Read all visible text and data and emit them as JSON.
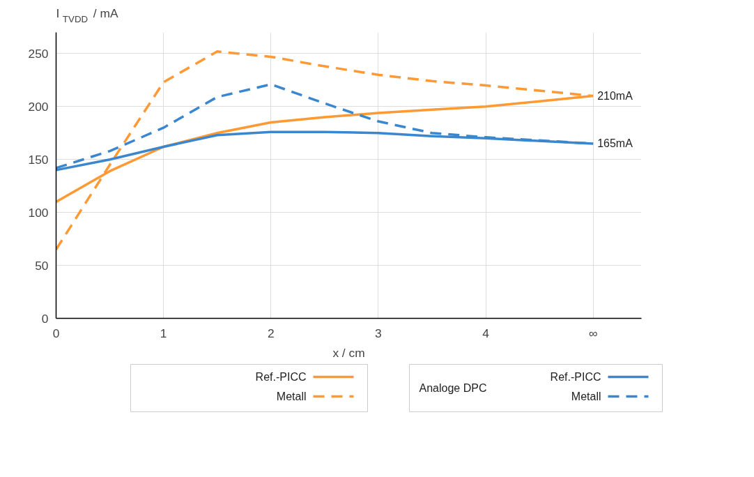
{
  "chart_data": {
    "type": "line",
    "xlabel": "x / cm",
    "ylabel": "I$_{TVDD}$ / mA",
    "x": [
      0,
      0.5,
      1,
      1.5,
      2,
      2.5,
      3,
      3.5,
      4,
      5
    ],
    "series": [
      {
        "name": "Ref.-PICC",
        "color": "#ff9933",
        "line_style": "solid",
        "values": [
          110,
          139,
          162,
          175,
          185,
          190,
          194,
          197,
          200,
          210
        ]
      },
      {
        "name": "Metall",
        "color": "#ff9933",
        "line_style": "dashed",
        "values": [
          65,
          145,
          223,
          252,
          247,
          238,
          230,
          224,
          220,
          210
        ]
      },
      {
        "name": "Ref.-PICC",
        "color": "#3a87cf",
        "line_style": "solid",
        "values": [
          140,
          150,
          162,
          173,
          176,
          176,
          175,
          172,
          170,
          165
        ]
      },
      {
        "name": "Metall",
        "color": "#3a87cf",
        "line_style": "dashed",
        "values": [
          142,
          158,
          180,
          209,
          221,
          203,
          186,
          175,
          171,
          165
        ]
      }
    ],
    "legend_title": "Analoge DPC",
    "xlim": [
      0,
      5.45
    ],
    "ylim": [
      0,
      270
    ],
    "xticks": [
      0,
      1,
      2,
      3,
      4,
      {
        "value": 5,
        "label": "∞"
      }
    ],
    "yticks": [
      0,
      50,
      100,
      150,
      200,
      250
    ],
    "grid": true,
    "legend": "bottom",
    "marker": "none",
    "annotations": [
      {
        "text": "210mA",
        "x": 5,
        "y": 210
      },
      {
        "text": "165mA",
        "x": 5,
        "y": 165
      }
    ]
  }
}
